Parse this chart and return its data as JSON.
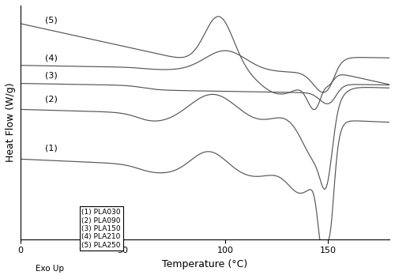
{
  "xlabel": "Temperature (°C)",
  "ylabel": "Heat Flow (W/g)",
  "exo_label": "Exo Up",
  "xlim": [
    0,
    180
  ],
  "legend_labels": [
    "(1) PLA030",
    "(2) PLA090",
    "(3) PLA150",
    "(4) PLA210",
    "(5) PLA250"
  ],
  "curve_color": "#555555",
  "curve_labels": [
    "(1)",
    "(2)",
    "(3)",
    "(4)",
    "(5)"
  ]
}
